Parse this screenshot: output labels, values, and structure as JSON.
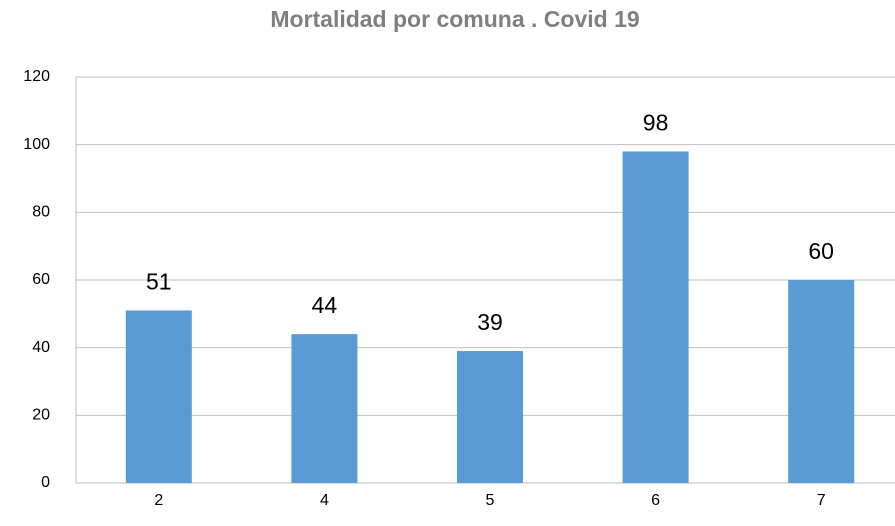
{
  "chart_data": {
    "type": "bar",
    "title": "Mortalidad por comuna . Covid 19",
    "categories": [
      "2",
      "4",
      "5",
      "6",
      "7"
    ],
    "values": [
      51,
      44,
      39,
      98,
      60
    ],
    "color": "#5b9bd5",
    "ylim": [
      0,
      120
    ],
    "yticks": [
      0,
      20,
      40,
      60,
      80,
      100,
      120
    ],
    "grid": true
  }
}
